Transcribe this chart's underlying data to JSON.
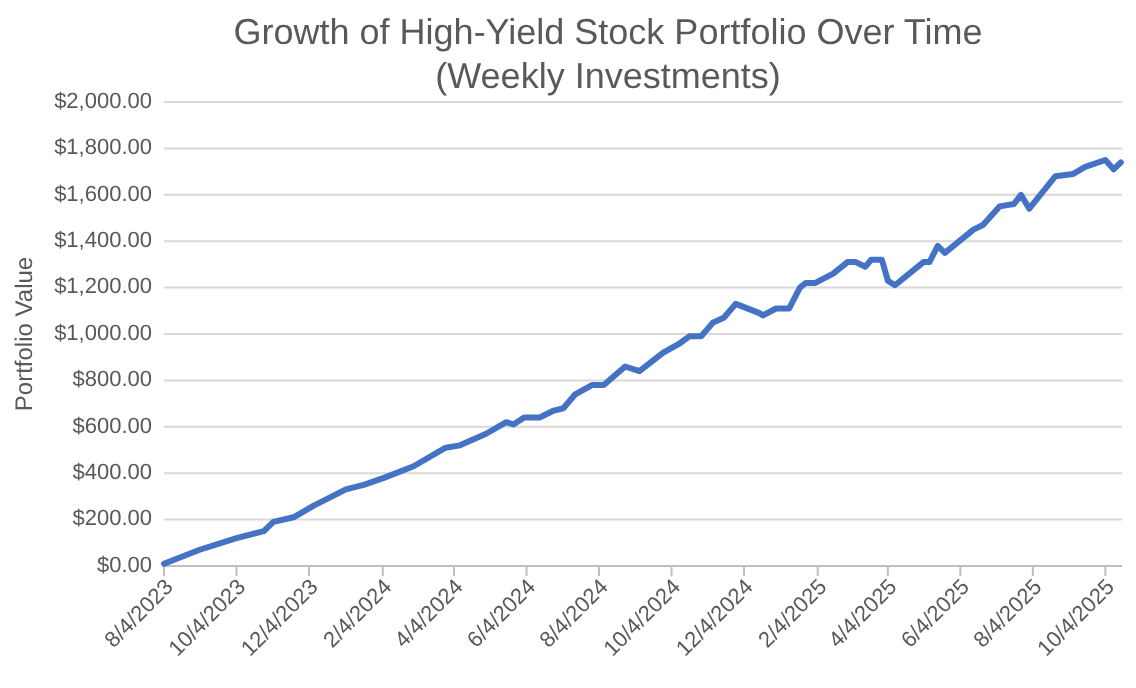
{
  "chart_data": {
    "type": "line",
    "title": "Growth of High-Yield Stock Portfolio Over Time",
    "subtitle": "(Weekly Investments)",
    "ylabel": "Portfolio Value",
    "x": [
      "2023-08-04",
      "2023-09-03",
      "2023-10-04",
      "2023-10-27",
      "2023-11-04",
      "2023-11-21",
      "2023-12-08",
      "2024-01-04",
      "2024-01-19",
      "2024-02-05",
      "2024-03-01",
      "2024-03-28",
      "2024-04-09",
      "2024-05-01",
      "2024-05-18",
      "2024-05-24",
      "2024-06-02",
      "2024-06-15",
      "2024-06-27",
      "2024-07-05",
      "2024-07-15",
      "2024-07-29",
      "2024-08-08",
      "2024-08-26",
      "2024-09-07",
      "2024-09-27",
      "2024-10-11",
      "2024-10-19",
      "2024-10-29",
      "2024-11-08",
      "2024-11-17",
      "2024-11-27",
      "2024-12-17",
      "2024-12-20",
      "2024-12-31",
      "2025-01-11",
      "2025-01-20",
      "2025-01-25",
      "2025-02-02",
      "2025-02-17",
      "2025-03-01",
      "2025-03-08",
      "2025-03-16",
      "2025-03-21",
      "2025-03-30",
      "2025-04-04",
      "2025-04-10",
      "2025-04-22",
      "2025-05-04",
      "2025-05-09",
      "2025-05-16",
      "2025-05-22",
      "2025-06-15",
      "2025-06-23",
      "2025-07-07",
      "2025-07-19",
      "2025-07-25",
      "2025-08-01",
      "2025-08-23",
      "2025-09-07",
      "2025-09-17",
      "2025-10-04",
      "2025-10-11",
      "2025-10-17"
    ],
    "series": [
      {
        "color": "#4472c4",
        "values": [
          10,
          70,
          120,
          150,
          190,
          210,
          260,
          330,
          350,
          380,
          430,
          510,
          520,
          570,
          620,
          610,
          640,
          640,
          670,
          680,
          740,
          780,
          780,
          860,
          840,
          920,
          960,
          990,
          990,
          1050,
          1070,
          1130,
          1090,
          1080,
          1110,
          1110,
          1200,
          1220,
          1220,
          1260,
          1310,
          1310,
          1290,
          1320,
          1320,
          1230,
          1210,
          1260,
          1310,
          1310,
          1380,
          1350,
          1450,
          1470,
          1550,
          1560,
          1600,
          1540,
          1680,
          1690,
          1720,
          1750,
          1710,
          1740
        ]
      }
    ],
    "xlim": [
      "2023-08-04",
      "2025-10-18"
    ],
    "xticks": [
      {
        "value": "2023-08-04",
        "label": "8/4/2023"
      },
      {
        "value": "2023-10-04",
        "label": "10/4/2023"
      },
      {
        "value": "2023-12-04",
        "label": "12/4/2023"
      },
      {
        "value": "2024-02-04",
        "label": "2/4/2024"
      },
      {
        "value": "2024-04-04",
        "label": "4/4/2024"
      },
      {
        "value": "2024-06-04",
        "label": "6/4/2024"
      },
      {
        "value": "2024-08-04",
        "label": "8/4/2024"
      },
      {
        "value": "2024-10-04",
        "label": "10/4/2024"
      },
      {
        "value": "2024-12-04",
        "label": "12/4/2024"
      },
      {
        "value": "2025-02-04",
        "label": "2/4/2025"
      },
      {
        "value": "2025-04-04",
        "label": "4/4/2025"
      },
      {
        "value": "2025-06-04",
        "label": "6/4/2025"
      },
      {
        "value": "2025-08-04",
        "label": "8/4/2025"
      },
      {
        "value": "2025-10-04",
        "label": "10/4/2025"
      }
    ],
    "ylim": [
      0,
      2000
    ],
    "yticks": [
      {
        "value": 0,
        "label": "$0.00"
      },
      {
        "value": 200,
        "label": "$200.00"
      },
      {
        "value": 400,
        "label": "$400.00"
      },
      {
        "value": 600,
        "label": "$600.00"
      },
      {
        "value": 800,
        "label": "$800.00"
      },
      {
        "value": 1000,
        "label": "$1,000.00"
      },
      {
        "value": 1200,
        "label": "$1,200.00"
      },
      {
        "value": 1400,
        "label": "$1,400.00"
      },
      {
        "value": 1600,
        "label": "$1,600.00"
      },
      {
        "value": 1800,
        "label": "$1,800.00"
      },
      {
        "value": 2000,
        "label": "$2,000.00"
      }
    ],
    "grid": "y",
    "marker": "none",
    "line_style": "solid"
  }
}
